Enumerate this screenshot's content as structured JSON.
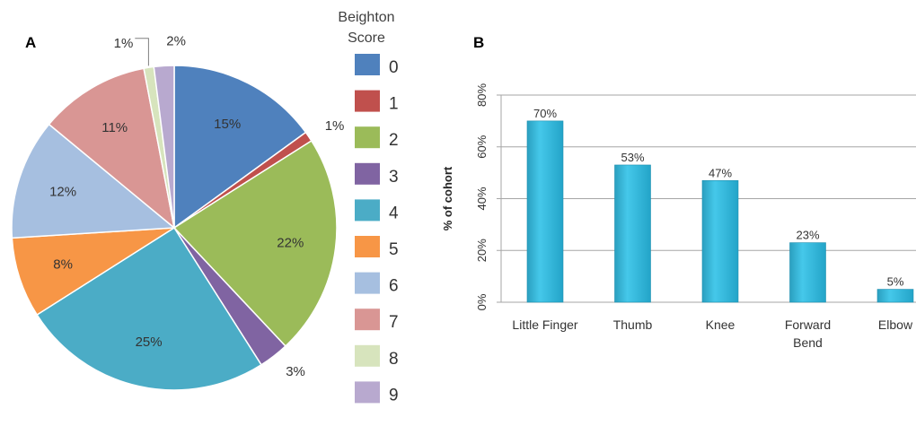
{
  "panels": {
    "a": "A",
    "b": "B"
  },
  "chart_data": [
    {
      "type": "pie",
      "panel": "A",
      "title": "",
      "legend_title": "Beighton Score",
      "legend_title_lines": [
        "Beighton",
        "Score"
      ],
      "legend_placement": "right",
      "start_angle_deg": 0,
      "direction": "clockwise",
      "slices": [
        {
          "label": "0",
          "value": 15,
          "value_label": "15%",
          "color": "#4f81bd"
        },
        {
          "label": "1",
          "value": 1,
          "value_label": "1%",
          "color": "#c0504d"
        },
        {
          "label": "2",
          "value": 22,
          "value_label": "22%",
          "color": "#9bbb59"
        },
        {
          "label": "3",
          "value": 3,
          "value_label": "3%",
          "color": "#8064a2"
        },
        {
          "label": "4",
          "value": 25,
          "value_label": "25%",
          "color": "#4bacc6"
        },
        {
          "label": "5",
          "value": 8,
          "value_label": "8%",
          "color": "#f79646"
        },
        {
          "label": "6",
          "value": 12,
          "value_label": "12%",
          "color": "#a6bfe0"
        },
        {
          "label": "7",
          "value": 11,
          "value_label": "11%",
          "color": "#d99694"
        },
        {
          "label": "8",
          "value": 1,
          "value_label": "1%",
          "color": "#d7e4bd"
        },
        {
          "label": "9",
          "value": 2,
          "value_label": "2%",
          "color": "#b8a9cf"
        }
      ]
    },
    {
      "type": "bar",
      "panel": "B",
      "title": "",
      "ylabel": "% of cohort",
      "xlabel": "",
      "ylim": [
        0,
        80
      ],
      "yticks": [
        "0%",
        "20%",
        "40%",
        "60%",
        "80%"
      ],
      "ytick_values": [
        0,
        20,
        40,
        60,
        80
      ],
      "grid": true,
      "bar_color": "#33bde0",
      "categories": [
        "Little Finger",
        "Thumb",
        "Knee",
        "Forward Bend",
        "Elbow"
      ],
      "category_lines": [
        [
          "Little Finger"
        ],
        [
          "Thumb"
        ],
        [
          "Knee"
        ],
        [
          "Forward",
          "Bend"
        ],
        [
          "Elbow"
        ]
      ],
      "values": [
        70,
        53,
        47,
        23,
        5
      ],
      "value_labels": [
        "70%",
        "53%",
        "47%",
        "23%",
        "5%"
      ]
    }
  ]
}
